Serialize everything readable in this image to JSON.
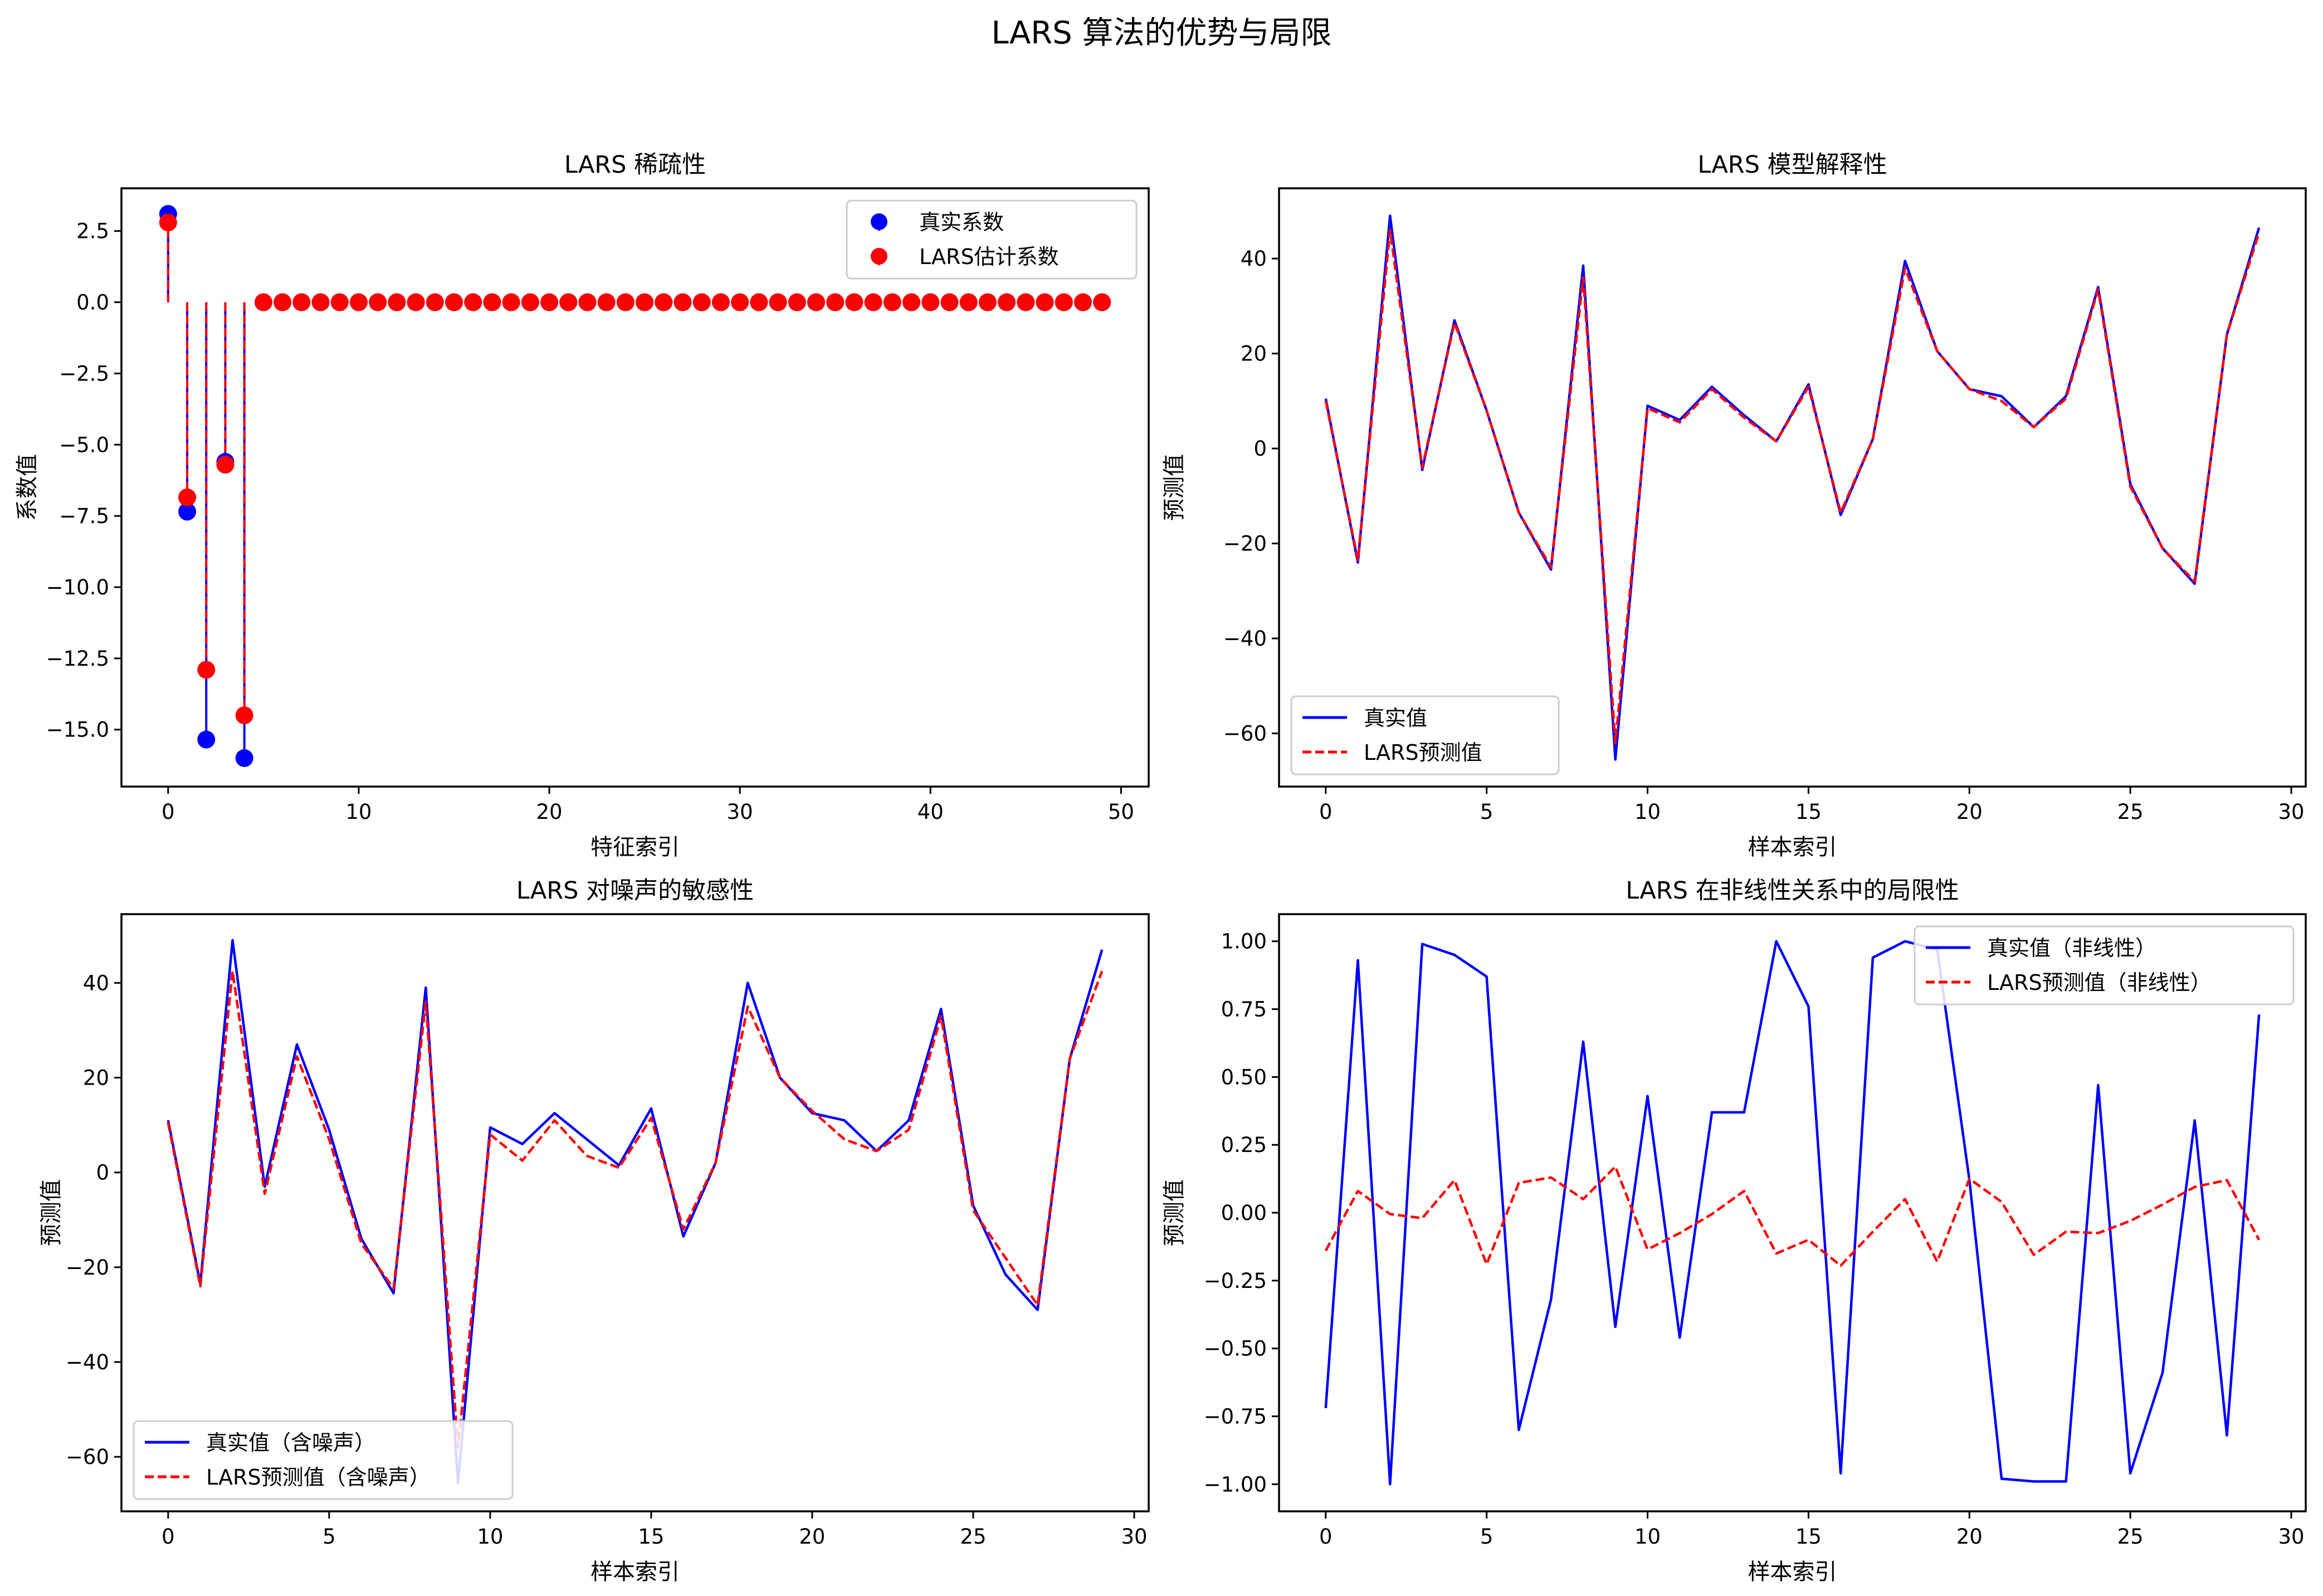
{
  "figure": {
    "suptitle": "LARS 算法的优势与局限"
  },
  "colors": {
    "true": "#0000ff",
    "pred": "#ff0000",
    "axes": "#000000",
    "legend_border": "#cccccc"
  },
  "chart_data": [
    {
      "type": "stem",
      "title": "LARS 稀疏性",
      "xlabel": "特征索引",
      "ylabel": "系数值",
      "xlim": [
        -2.45,
        51.45
      ],
      "ylim": [
        -17.0,
        4.0
      ],
      "xticks": [
        0,
        10,
        20,
        30,
        40,
        50
      ],
      "yticks": [
        2.5,
        0.0,
        -2.5,
        -5.0,
        -7.5,
        -10.0,
        -12.5,
        -15.0
      ],
      "ytick_labels": [
        "2.5",
        "0.0",
        "−2.5",
        "−5.0",
        "−7.5",
        "−10.0",
        "−12.5",
        "−15.0"
      ],
      "legend_position": "upper right",
      "series": [
        {
          "name": "真实系数",
          "color": "#0000ff",
          "style": "stem-solid",
          "values": [
            3.1,
            -7.35,
            -15.35,
            -5.6,
            -16.0,
            0,
            0,
            0,
            0,
            0,
            0,
            0,
            0,
            0,
            0,
            0,
            0,
            0,
            0,
            0,
            0,
            0,
            0,
            0,
            0,
            0,
            0,
            0,
            0,
            0,
            0,
            0,
            0,
            0,
            0,
            0,
            0,
            0,
            0,
            0,
            0,
            0,
            0,
            0,
            0,
            0,
            0,
            0,
            0,
            0
          ]
        },
        {
          "name": "LARS估计系数",
          "color": "#ff0000",
          "style": "stem-dashed",
          "values": [
            2.8,
            -6.85,
            -12.9,
            -5.7,
            -14.5,
            0,
            0,
            0,
            0,
            0,
            0,
            0,
            0,
            0,
            0,
            0,
            0,
            0,
            0,
            0,
            0,
            0,
            0,
            0,
            0,
            0,
            0,
            0,
            0,
            0,
            0,
            0,
            0,
            0,
            0,
            0,
            0,
            0,
            0,
            0,
            0,
            0,
            0,
            0,
            0,
            0,
            0,
            0,
            0,
            0
          ]
        }
      ]
    },
    {
      "type": "line",
      "title": "LARS 模型解释性",
      "xlabel": "样本索引",
      "ylabel": "预测值",
      "xlim": [
        -1.45,
        30.45
      ],
      "ylim": [
        -71.2,
        54.8
      ],
      "xticks": [
        0,
        5,
        10,
        15,
        20,
        25,
        30
      ],
      "yticks": [
        40,
        20,
        0,
        -20,
        -40,
        -60
      ],
      "ytick_labels": [
        "40",
        "20",
        "0",
        "−20",
        "−40",
        "−60"
      ],
      "legend_position": "lower left",
      "series": [
        {
          "name": "真实值",
          "color": "#0000ff",
          "style": "solid",
          "values": [
            10.5,
            -24,
            49,
            -4.5,
            27,
            8,
            -13.5,
            -25.5,
            38.5,
            -65.5,
            9,
            6,
            13,
            7,
            1.5,
            13.5,
            -14,
            2,
            39.5,
            20.5,
            12.5,
            11,
            4.5,
            11,
            34,
            -7.5,
            -21,
            -28.5,
            24,
            46.5
          ]
        },
        {
          "name": "LARS预测值",
          "color": "#ff0000",
          "style": "dashed",
          "values": [
            10,
            -23.5,
            46,
            -4,
            26.5,
            8,
            -13.5,
            -25,
            36,
            -62,
            8.5,
            5.5,
            12.5,
            6.5,
            1.5,
            13,
            -13.5,
            2,
            38,
            20.5,
            12.5,
            10,
            4.5,
            10.5,
            33.5,
            -8,
            -21,
            -28,
            24,
            45.5
          ]
        }
      ]
    },
    {
      "type": "line",
      "title": "LARS 对噪声的敏感性",
      "xlabel": "样本索引",
      "ylabel": "预测值",
      "xlim": [
        -1.45,
        30.45
      ],
      "ylim": [
        -71.5,
        54.5
      ],
      "xticks": [
        0,
        5,
        10,
        15,
        20,
        25,
        30
      ],
      "yticks": [
        40,
        20,
        0,
        -20,
        -40,
        -60
      ],
      "ytick_labels": [
        "40",
        "20",
        "0",
        "−20",
        "−40",
        "−60"
      ],
      "legend_position": "lower left",
      "series": [
        {
          "name": "真实值（含噪声）",
          "color": "#0000ff",
          "style": "solid",
          "values": [
            11,
            -23.5,
            49,
            -3,
            27,
            9,
            -14,
            -25.5,
            39,
            -65.5,
            9.5,
            6,
            12.5,
            7,
            1.5,
            13.5,
            -13.5,
            2,
            40,
            20,
            12.5,
            11,
            4.5,
            11,
            34.5,
            -7,
            -21.5,
            -29,
            24,
            47
          ]
        },
        {
          "name": "LARS预测值（含噪声）",
          "color": "#ff0000",
          "style": "dashed",
          "values": [
            10.5,
            -24,
            42.5,
            -4.5,
            24.5,
            7,
            -15,
            -24.5,
            36,
            -58,
            8,
            2.5,
            11,
            3.5,
            1,
            11.5,
            -12,
            2,
            35,
            20,
            13,
            7,
            4.5,
            9,
            33,
            -8,
            -18,
            -28,
            24,
            42.5
          ]
        }
      ]
    },
    {
      "type": "line",
      "title": "LARS 在非线性关系中的局限性",
      "xlabel": "样本索引",
      "ylabel": "预测值",
      "xlim": [
        -1.45,
        30.45
      ],
      "ylim": [
        -1.1,
        1.1
      ],
      "xticks": [
        0,
        5,
        10,
        15,
        20,
        25,
        30
      ],
      "yticks": [
        1.0,
        0.75,
        0.5,
        0.25,
        0.0,
        -0.25,
        -0.5,
        -0.75,
        -1.0
      ],
      "ytick_labels": [
        "1.00",
        "0.75",
        "0.50",
        "0.25",
        "0.00",
        "−0.25",
        "−0.50",
        "−0.75",
        "−1.00"
      ],
      "legend_position": "upper right",
      "series": [
        {
          "name": "真实值（非线性）",
          "color": "#0000ff",
          "style": "solid",
          "values": [
            -0.72,
            0.93,
            -1.0,
            0.99,
            0.95,
            0.87,
            -0.8,
            -0.32,
            0.63,
            -0.42,
            0.43,
            -0.46,
            0.37,
            0.37,
            1.0,
            0.76,
            -0.96,
            0.94,
            1.0,
            0.97,
            0.12,
            -0.98,
            -0.99,
            -0.99,
            0.47,
            -0.96,
            -0.59,
            0.34,
            -0.82,
            0.73
          ]
        },
        {
          "name": "LARS预测值（非线性）",
          "color": "#ff0000",
          "style": "dashed",
          "values": [
            -0.14,
            0.08,
            -0.005,
            -0.02,
            0.12,
            -0.19,
            0.11,
            0.13,
            0.05,
            0.17,
            -0.135,
            -0.075,
            -0.005,
            0.08,
            -0.15,
            -0.1,
            -0.195,
            -0.07,
            0.05,
            -0.18,
            0.125,
            0.04,
            -0.155,
            -0.07,
            -0.075,
            -0.03,
            0.03,
            0.095,
            0.12,
            -0.1
          ]
        }
      ]
    }
  ]
}
